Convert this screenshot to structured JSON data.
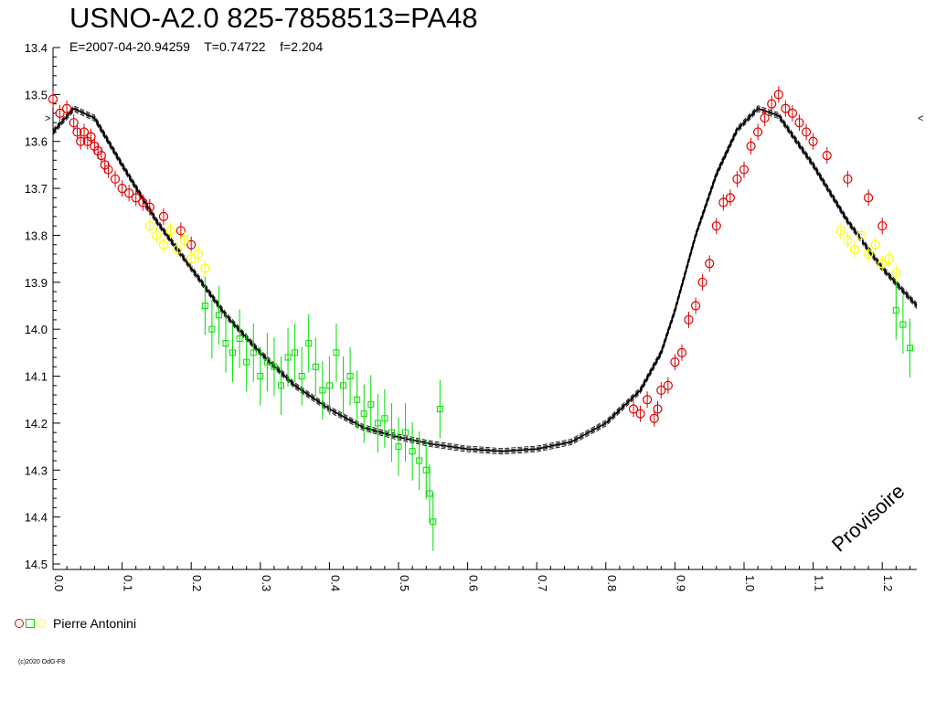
{
  "chart_data": {
    "type": "scatter",
    "title": "USNO-A2.0 825-7858513=PA48",
    "subtitle": "E=2007-04-20.94259    T=0.74722    f=2.204",
    "xlabel": "",
    "ylabel": "",
    "xlim": [
      0.0,
      1.25
    ],
    "ylim": [
      13.4,
      14.5
    ],
    "y_inverted": true,
    "x_tick_labels": [
      "0.0",
      "0.1",
      "0.2",
      "0.3",
      "0.4",
      "0.5",
      "0.6",
      "0.7",
      "0.8",
      "0.9",
      "1.0",
      "1.1",
      "1.2"
    ],
    "y_tick_labels": [
      "13.4",
      "13.5",
      "13.6",
      "13.7",
      "13.8",
      "13.9",
      "14.0",
      "14.1",
      "14.2",
      "14.3",
      "14.4",
      "14.5"
    ],
    "grid": false,
    "legend_position": "bottom-left",
    "model_curve": {
      "phase": [
        0.0,
        0.03,
        0.06,
        0.1,
        0.15,
        0.2,
        0.25,
        0.3,
        0.35,
        0.4,
        0.45,
        0.5,
        0.55,
        0.6,
        0.65,
        0.7,
        0.75,
        0.8,
        0.85,
        0.88,
        0.9,
        0.93,
        0.96,
        0.99,
        1.02,
        1.05,
        1.1,
        1.15,
        1.2,
        1.25
      ],
      "mag": [
        13.58,
        13.53,
        13.55,
        13.65,
        13.77,
        13.87,
        13.97,
        14.05,
        14.12,
        14.17,
        14.21,
        14.23,
        14.245,
        14.255,
        14.26,
        14.255,
        14.24,
        14.2,
        14.13,
        14.05,
        13.96,
        13.8,
        13.67,
        13.575,
        13.53,
        13.545,
        13.65,
        13.77,
        13.87,
        13.95
      ]
    },
    "series": [
      {
        "name": "",
        "color": "#e00000",
        "marker": "circle",
        "x": [
          0.0,
          0.01,
          0.02,
          0.03,
          0.035,
          0.04,
          0.045,
          0.05,
          0.055,
          0.06,
          0.065,
          0.07,
          0.075,
          0.08,
          0.09,
          0.1,
          0.11,
          0.12,
          0.13,
          0.14,
          0.16,
          0.185,
          0.2,
          0.84,
          0.85,
          0.86,
          0.87,
          0.875,
          0.88,
          0.89,
          0.9,
          0.91,
          0.92,
          0.93,
          0.94,
          0.95,
          0.96,
          0.97,
          0.98,
          0.99,
          1.0,
          1.01,
          1.02,
          1.03,
          1.04,
          1.05,
          1.06,
          1.07,
          1.08,
          1.09,
          1.1,
          1.12,
          1.15,
          1.18,
          1.2
        ],
        "y": [
          13.51,
          13.54,
          13.53,
          13.56,
          13.58,
          13.6,
          13.58,
          13.6,
          13.59,
          13.61,
          13.62,
          13.63,
          13.65,
          13.66,
          13.68,
          13.7,
          13.71,
          13.72,
          13.73,
          13.74,
          13.76,
          13.79,
          13.82,
          14.17,
          14.18,
          14.15,
          14.19,
          14.17,
          14.13,
          14.12,
          14.07,
          14.05,
          13.98,
          13.95,
          13.9,
          13.86,
          13.78,
          13.73,
          13.72,
          13.68,
          13.66,
          13.61,
          13.58,
          13.55,
          13.52,
          13.5,
          13.53,
          13.54,
          13.56,
          13.58,
          13.6,
          13.63,
          13.68,
          13.72,
          13.78
        ]
      },
      {
        "name": "",
        "color": "#00dd00",
        "marker": "square",
        "x": [
          0.22,
          0.23,
          0.24,
          0.25,
          0.26,
          0.27,
          0.28,
          0.29,
          0.3,
          0.31,
          0.32,
          0.33,
          0.34,
          0.35,
          0.36,
          0.37,
          0.38,
          0.39,
          0.4,
          0.41,
          0.42,
          0.43,
          0.44,
          0.45,
          0.46,
          0.47,
          0.48,
          0.49,
          0.5,
          0.51,
          0.52,
          0.53,
          0.54,
          0.545,
          0.55,
          0.56,
          1.22,
          1.23,
          1.24
        ],
        "y": [
          13.95,
          14.0,
          13.97,
          14.03,
          14.05,
          14.02,
          14.07,
          14.05,
          14.1,
          14.07,
          14.08,
          14.12,
          14.06,
          14.05,
          14.1,
          14.03,
          14.08,
          14.13,
          14.12,
          14.05,
          14.12,
          14.1,
          14.15,
          14.18,
          14.16,
          14.2,
          14.19,
          14.22,
          14.25,
          14.22,
          14.26,
          14.28,
          14.3,
          14.35,
          14.41,
          14.17,
          13.96,
          13.99,
          14.04
        ]
      },
      {
        "name": "",
        "color": "#ffff00",
        "marker": "circle",
        "x": [
          0.14,
          0.15,
          0.16,
          0.17,
          0.18,
          0.19,
          0.2,
          0.21,
          0.22,
          1.14,
          1.15,
          1.16,
          1.17,
          1.18,
          1.19,
          1.2,
          1.21,
          1.22
        ],
        "y": [
          13.78,
          13.8,
          13.82,
          13.79,
          13.83,
          13.81,
          13.85,
          13.84,
          13.87,
          13.79,
          13.81,
          13.83,
          13.8,
          13.84,
          13.82,
          13.86,
          13.85,
          13.88
        ]
      }
    ]
  },
  "legend": {
    "label": "Pierre Antonini",
    "colors": [
      "#e00000",
      "#00dd00",
      "#ffff00"
    ]
  },
  "watermark": "Provisoire",
  "copyright": "(c)2020 OdG-F8",
  "marks": {
    "left_arrow": ">",
    "right_arrow": "<"
  }
}
